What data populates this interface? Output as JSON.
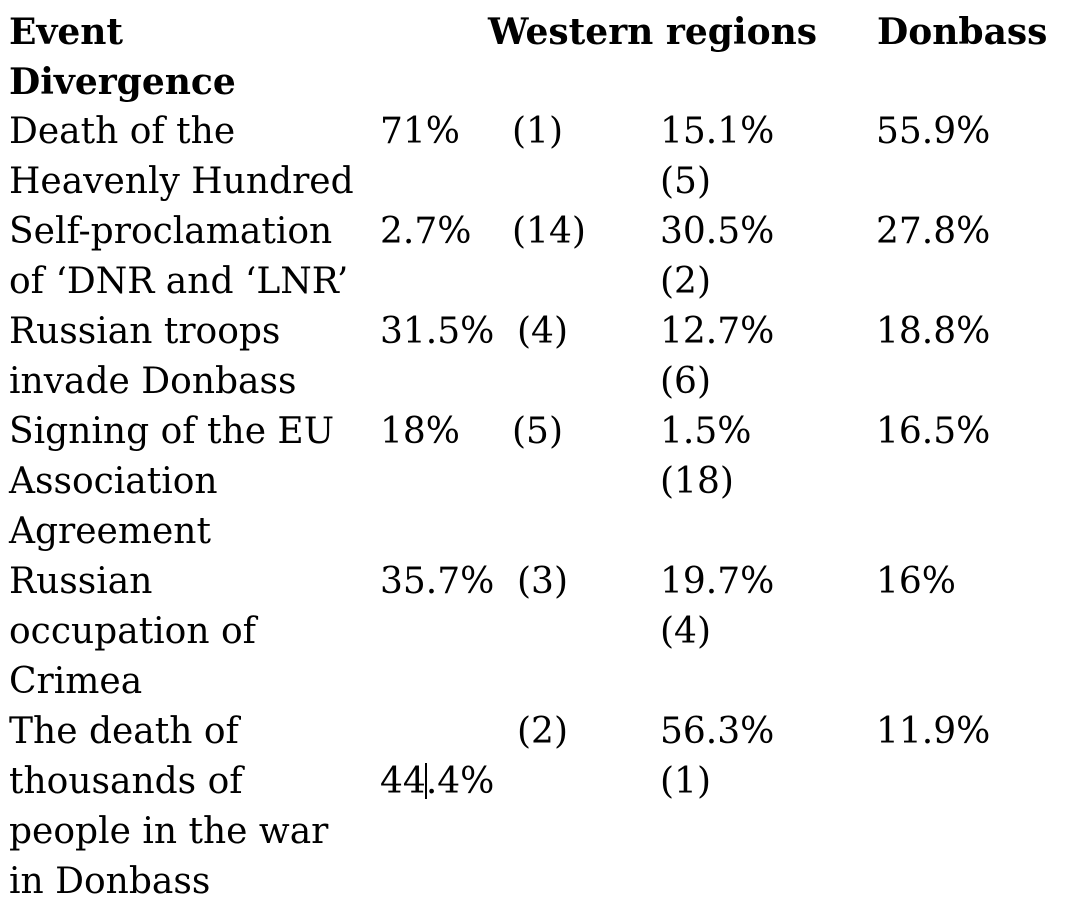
{
  "header": {
    "event": "Event\nDivergence",
    "western": "Western regions",
    "donbass": "Donbass"
  },
  "rows": [
    {
      "event": "Death of the\nHeavenly Hundred",
      "value1": "71%",
      "rank1": "(1)",
      "value2": "15.1%\n(5)",
      "value3": "55.9%"
    },
    {
      "event": "Self-proclamation\nof ‘DNR  and ‘LNR’",
      "value1": "2.7%",
      "rank1": "(14)",
      "value2": "30.5%\n(2)",
      "value3": "27.8%"
    },
    {
      "event": "Russian troops\ninvade Donbass",
      "value1": "31.5%",
      "rank1": "(4)",
      "value2": "12.7%\n(6)",
      "value3": "18.8%"
    },
    {
      "event": "Signing of the EU\nAssociation\nAgreement",
      "value1": "18%",
      "rank1": "(5)",
      "value2": "1.5%\n(18)",
      "value3": "16.5%"
    },
    {
      "event": "Russian\noccupation of\nCrimea",
      "value1": "35.7%",
      "rank1": "(3)",
      "value2": "19.7%\n(4)",
      "value3": "16%"
    },
    {
      "event": "The death of\nthousands of\npeople in the war\nin Donbass",
      "value1_a": "44",
      "value1_b": ".4%",
      "rank1": "(2)",
      "value2": "56.3%\n(1)",
      "value3": "11.9%"
    }
  ]
}
